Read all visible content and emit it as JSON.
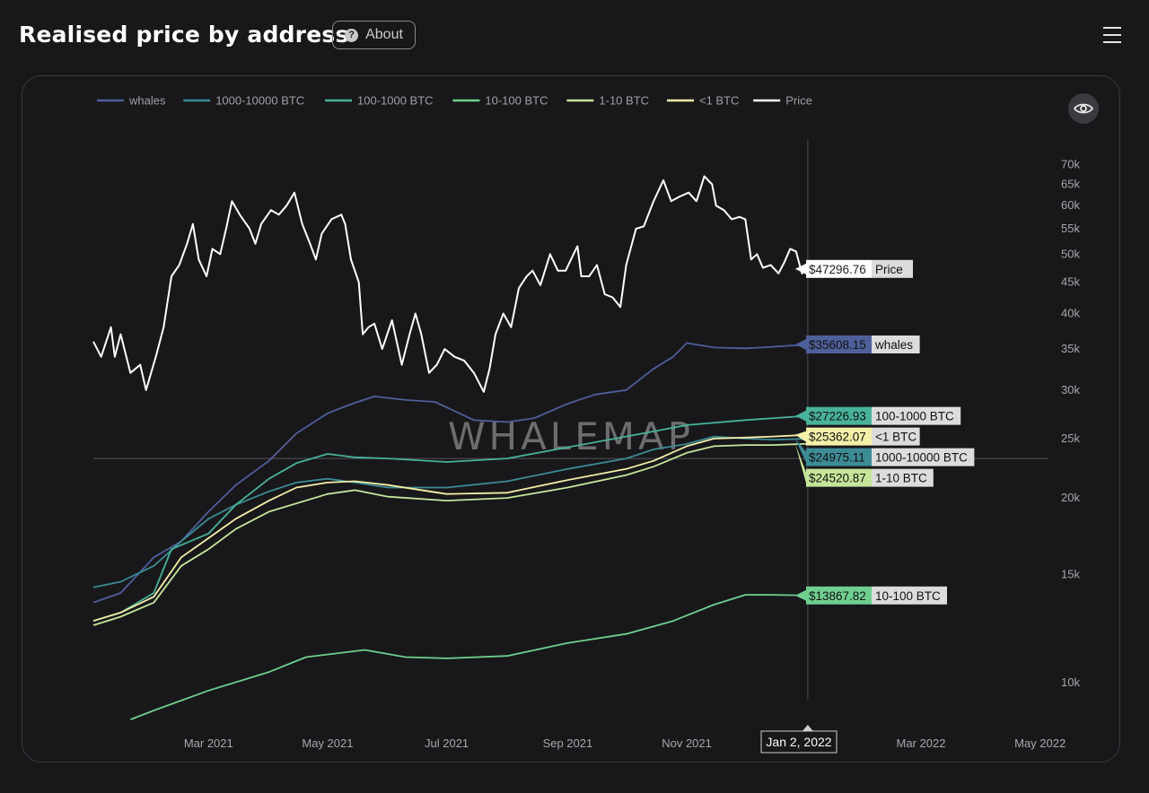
{
  "header": {
    "title": "Realised price by address",
    "about_label": "About"
  },
  "watermark": "WHALEMAP",
  "chart_data": {
    "type": "line",
    "y_scale": "log",
    "ylim": [
      8500,
      75000
    ],
    "xlim": [
      "2021-01-01",
      "2022-05-03"
    ],
    "grid": false,
    "legend_position": "top-left",
    "y_ticks": [
      {
        "value": 10000,
        "label": "10k"
      },
      {
        "value": 15000,
        "label": "15k"
      },
      {
        "value": 20000,
        "label": "20k"
      },
      {
        "value": 25000,
        "label": "25k"
      },
      {
        "value": 30000,
        "label": "30k"
      },
      {
        "value": 35000,
        "label": "35k"
      },
      {
        "value": 40000,
        "label": "40k"
      },
      {
        "value": 45000,
        "label": "45k"
      },
      {
        "value": 50000,
        "label": "50k"
      },
      {
        "value": 55000,
        "label": "55k"
      },
      {
        "value": 60000,
        "label": "60k"
      },
      {
        "value": 65000,
        "label": "65k"
      },
      {
        "value": 70000,
        "label": "70k"
      }
    ],
    "x_ticks": [
      {
        "date": "2021-03-01",
        "label": "Mar 2021"
      },
      {
        "date": "2021-05-01",
        "label": "May 2021"
      },
      {
        "date": "2021-07-01",
        "label": "Jul 2021"
      },
      {
        "date": "2021-09-01",
        "label": "Sep 2021"
      },
      {
        "date": "2021-11-01",
        "label": "Nov 2021"
      },
      {
        "date": "2022-03-01",
        "label": "Mar 2022"
      },
      {
        "date": "2022-05-01",
        "label": "May 2022"
      }
    ],
    "crosshair": {
      "date": "2022-01-02",
      "label": "Jan 2, 2022",
      "value": 23200
    },
    "series": [
      {
        "name": "whales",
        "color": "#4f5f9a",
        "points": [
          [
            "2021-01-01",
            13500
          ],
          [
            "2021-01-15",
            14000
          ],
          [
            "2021-02-01",
            16000
          ],
          [
            "2021-02-15",
            17000
          ],
          [
            "2021-03-01",
            19000
          ],
          [
            "2021-03-15",
            21000
          ],
          [
            "2021-04-01",
            23000
          ],
          [
            "2021-04-15",
            25500
          ],
          [
            "2021-05-01",
            27500
          ],
          [
            "2021-05-15",
            28600
          ],
          [
            "2021-05-25",
            29300
          ],
          [
            "2021-06-10",
            28900
          ],
          [
            "2021-06-25",
            28700
          ],
          [
            "2021-07-15",
            26800
          ],
          [
            "2021-08-01",
            26600
          ],
          [
            "2021-08-15",
            27000
          ],
          [
            "2021-09-01",
            28500
          ],
          [
            "2021-09-15",
            29500
          ],
          [
            "2021-10-01",
            30000
          ],
          [
            "2021-10-15",
            32500
          ],
          [
            "2021-10-25",
            34000
          ],
          [
            "2021-11-01",
            35800
          ],
          [
            "2021-11-15",
            35200
          ],
          [
            "2021-12-01",
            35100
          ],
          [
            "2021-12-15",
            35300
          ],
          [
            "2022-01-02",
            35608.15
          ]
        ],
        "end_label": "$35608.15",
        "end_name": "whales"
      },
      {
        "name": "1000-10000 BTC",
        "color": "#3d8b95",
        "points": [
          [
            "2021-01-01",
            14300
          ],
          [
            "2021-01-15",
            14600
          ],
          [
            "2021-02-01",
            15500
          ],
          [
            "2021-02-15",
            17000
          ],
          [
            "2021-03-01",
            18500
          ],
          [
            "2021-03-15",
            19500
          ],
          [
            "2021-04-01",
            20500
          ],
          [
            "2021-04-15",
            21200
          ],
          [
            "2021-05-01",
            21500
          ],
          [
            "2021-05-15",
            21200
          ],
          [
            "2021-06-01",
            20800
          ],
          [
            "2021-07-01",
            20800
          ],
          [
            "2021-08-01",
            21300
          ],
          [
            "2021-09-01",
            22300
          ],
          [
            "2021-10-01",
            23200
          ],
          [
            "2021-10-15",
            24000
          ],
          [
            "2021-11-01",
            24500
          ],
          [
            "2021-11-15",
            25200
          ],
          [
            "2021-12-01",
            25000
          ],
          [
            "2021-12-15",
            24900
          ],
          [
            "2022-01-02",
            24975.11
          ]
        ],
        "end_label": "$24975.11",
        "end_name": "1000-10000 BTC"
      },
      {
        "name": "100-1000 BTC",
        "color": "#48b29a",
        "points": [
          [
            "2021-01-01",
            12600
          ],
          [
            "2021-01-15",
            13000
          ],
          [
            "2021-02-01",
            14000
          ],
          [
            "2021-02-10",
            16500
          ],
          [
            "2021-03-01",
            17500
          ],
          [
            "2021-03-15",
            19500
          ],
          [
            "2021-04-01",
            21500
          ],
          [
            "2021-04-15",
            22800
          ],
          [
            "2021-05-01",
            23600
          ],
          [
            "2021-05-15",
            23300
          ],
          [
            "2021-06-01",
            23200
          ],
          [
            "2021-07-01",
            22900
          ],
          [
            "2021-08-01",
            23200
          ],
          [
            "2021-09-01",
            24200
          ],
          [
            "2021-10-01",
            25200
          ],
          [
            "2021-11-01",
            26300
          ],
          [
            "2021-12-01",
            26800
          ],
          [
            "2022-01-02",
            27226.93
          ]
        ],
        "end_label": "$27226.93",
        "end_name": "100-1000 BTC"
      },
      {
        "name": "10-100 BTC",
        "color": "#6fcf8f",
        "points": [
          [
            "2021-01-20",
            8700
          ],
          [
            "2021-02-01",
            9000
          ],
          [
            "2021-03-01",
            9700
          ],
          [
            "2021-04-01",
            10400
          ],
          [
            "2021-04-20",
            11000
          ],
          [
            "2021-05-20",
            11300
          ],
          [
            "2021-06-10",
            11000
          ],
          [
            "2021-07-01",
            10950
          ],
          [
            "2021-08-01",
            11050
          ],
          [
            "2021-09-01",
            11600
          ],
          [
            "2021-10-01",
            12000
          ],
          [
            "2021-10-25",
            12600
          ],
          [
            "2021-11-15",
            13400
          ],
          [
            "2021-12-01",
            13900
          ],
          [
            "2021-12-15",
            13900
          ],
          [
            "2022-01-02",
            13867.82
          ]
        ],
        "end_label": "$13867.82",
        "end_name": "10-100 BTC"
      },
      {
        "name": "1-10 BTC",
        "color": "#c6e59a",
        "points": [
          [
            "2021-01-01",
            12400
          ],
          [
            "2021-01-15",
            12800
          ],
          [
            "2021-02-01",
            13500
          ],
          [
            "2021-02-15",
            15500
          ],
          [
            "2021-03-01",
            16500
          ],
          [
            "2021-03-15",
            17800
          ],
          [
            "2021-04-01",
            19000
          ],
          [
            "2021-05-01",
            20300
          ],
          [
            "2021-05-15",
            20600
          ],
          [
            "2021-06-01",
            20100
          ],
          [
            "2021-07-01",
            19800
          ],
          [
            "2021-08-01",
            20000
          ],
          [
            "2021-09-01",
            20800
          ],
          [
            "2021-10-01",
            21800
          ],
          [
            "2021-10-15",
            22500
          ],
          [
            "2021-11-01",
            23700
          ],
          [
            "2021-11-15",
            24300
          ],
          [
            "2021-12-01",
            24400
          ],
          [
            "2021-12-15",
            24400
          ],
          [
            "2022-01-02",
            24520.87
          ]
        ],
        "end_label": "$24520.87",
        "end_name": "1-10 BTC"
      },
      {
        "name": "<1 BTC",
        "color": "#f4f0a8",
        "points": [
          [
            "2021-01-01",
            12600
          ],
          [
            "2021-01-15",
            13000
          ],
          [
            "2021-02-01",
            13800
          ],
          [
            "2021-02-15",
            16000
          ],
          [
            "2021-03-01",
            17200
          ],
          [
            "2021-03-15",
            18500
          ],
          [
            "2021-04-01",
            19800
          ],
          [
            "2021-04-15",
            20800
          ],
          [
            "2021-05-01",
            21200
          ],
          [
            "2021-05-15",
            21300
          ],
          [
            "2021-06-01",
            21000
          ],
          [
            "2021-07-01",
            20300
          ],
          [
            "2021-08-01",
            20400
          ],
          [
            "2021-09-01",
            21400
          ],
          [
            "2021-10-01",
            22300
          ],
          [
            "2021-10-15",
            23000
          ],
          [
            "2021-11-01",
            24300
          ],
          [
            "2021-11-15",
            25000
          ],
          [
            "2021-12-01",
            25100
          ],
          [
            "2021-12-15",
            25200
          ],
          [
            "2022-01-02",
            25362.07
          ]
        ],
        "end_label": "$25362.07",
        "end_name": "<1 BTC"
      },
      {
        "name": "Price",
        "color": "#ffffff",
        "points": [
          [
            "2021-01-01",
            36000
          ],
          [
            "2021-01-05",
            34000
          ],
          [
            "2021-01-10",
            38000
          ],
          [
            "2021-01-12",
            34000
          ],
          [
            "2021-01-15",
            37000
          ],
          [
            "2021-01-20",
            32000
          ],
          [
            "2021-01-25",
            33000
          ],
          [
            "2021-01-28",
            30000
          ],
          [
            "2021-02-02",
            34000
          ],
          [
            "2021-02-06",
            38000
          ],
          [
            "2021-02-10",
            46000
          ],
          [
            "2021-02-14",
            48000
          ],
          [
            "2021-02-18",
            52000
          ],
          [
            "2021-02-21",
            56000
          ],
          [
            "2021-02-24",
            49000
          ],
          [
            "2021-02-28",
            46000
          ],
          [
            "2021-03-03",
            51000
          ],
          [
            "2021-03-07",
            50000
          ],
          [
            "2021-03-10",
            55000
          ],
          [
            "2021-03-13",
            61000
          ],
          [
            "2021-03-17",
            58000
          ],
          [
            "2021-03-22",
            55000
          ],
          [
            "2021-03-25",
            52000
          ],
          [
            "2021-03-28",
            56000
          ],
          [
            "2021-04-02",
            59000
          ],
          [
            "2021-04-06",
            58000
          ],
          [
            "2021-04-10",
            60000
          ],
          [
            "2021-04-14",
            63000
          ],
          [
            "2021-04-18",
            56000
          ],
          [
            "2021-04-22",
            52000
          ],
          [
            "2021-04-25",
            49000
          ],
          [
            "2021-04-28",
            54000
          ],
          [
            "2021-05-03",
            57000
          ],
          [
            "2021-05-08",
            58000
          ],
          [
            "2021-05-10",
            56000
          ],
          [
            "2021-05-13",
            49000
          ],
          [
            "2021-05-17",
            45000
          ],
          [
            "2021-05-19",
            37000
          ],
          [
            "2021-05-22",
            38000
          ],
          [
            "2021-05-25",
            38500
          ],
          [
            "2021-05-29",
            35000
          ],
          [
            "2021-06-03",
            39000
          ],
          [
            "2021-06-08",
            33000
          ],
          [
            "2021-06-12",
            37000
          ],
          [
            "2021-06-15",
            40000
          ],
          [
            "2021-06-18",
            37000
          ],
          [
            "2021-06-22",
            32000
          ],
          [
            "2021-06-26",
            33000
          ],
          [
            "2021-06-30",
            35000
          ],
          [
            "2021-07-05",
            34000
          ],
          [
            "2021-07-10",
            33500
          ],
          [
            "2021-07-15",
            32000
          ],
          [
            "2021-07-20",
            29800
          ],
          [
            "2021-07-23",
            32500
          ],
          [
            "2021-07-26",
            37000
          ],
          [
            "2021-07-30",
            40000
          ],
          [
            "2021-08-03",
            38000
          ],
          [
            "2021-08-07",
            44000
          ],
          [
            "2021-08-11",
            46000
          ],
          [
            "2021-08-14",
            47000
          ],
          [
            "2021-08-18",
            44500
          ],
          [
            "2021-08-23",
            50000
          ],
          [
            "2021-08-27",
            47000
          ],
          [
            "2021-08-31",
            47000
          ],
          [
            "2021-09-04",
            50000
          ],
          [
            "2021-09-06",
            51500
          ],
          [
            "2021-09-08",
            46000
          ],
          [
            "2021-09-12",
            46000
          ],
          [
            "2021-09-16",
            48000
          ],
          [
            "2021-09-20",
            43000
          ],
          [
            "2021-09-24",
            42500
          ],
          [
            "2021-09-28",
            41000
          ],
          [
            "2021-10-01",
            48000
          ],
          [
            "2021-10-06",
            55000
          ],
          [
            "2021-10-10",
            55500
          ],
          [
            "2021-10-15",
            61000
          ],
          [
            "2021-10-20",
            66000
          ],
          [
            "2021-10-24",
            61000
          ],
          [
            "2021-10-28",
            62000
          ],
          [
            "2021-11-02",
            63000
          ],
          [
            "2021-11-06",
            61000
          ],
          [
            "2021-11-10",
            67000
          ],
          [
            "2021-11-14",
            65000
          ],
          [
            "2021-11-16",
            60000
          ],
          [
            "2021-11-20",
            59000
          ],
          [
            "2021-11-24",
            57000
          ],
          [
            "2021-11-28",
            57500
          ],
          [
            "2021-12-01",
            57000
          ],
          [
            "2021-12-04",
            49000
          ],
          [
            "2021-12-07",
            50000
          ],
          [
            "2021-12-10",
            47500
          ],
          [
            "2021-12-14",
            48000
          ],
          [
            "2021-12-18",
            46500
          ],
          [
            "2021-12-21",
            48500
          ],
          [
            "2021-12-24",
            51000
          ],
          [
            "2021-12-27",
            50500
          ],
          [
            "2021-12-30",
            46500
          ],
          [
            "2022-01-02",
            47296.76
          ]
        ],
        "end_label": "$47296.76",
        "end_name": "Price"
      }
    ]
  }
}
